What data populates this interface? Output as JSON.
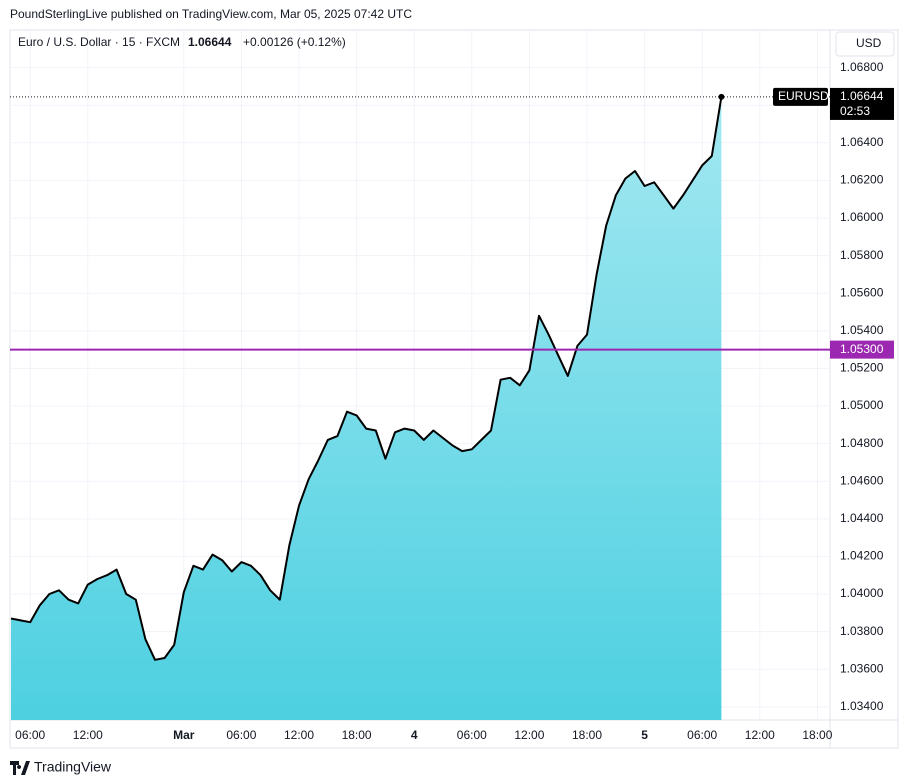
{
  "header": {
    "published": "PoundSterlingLive published on TradingView.com, Mar 05, 2025 07:42 UTC",
    "footer": "TradingView"
  },
  "chart_data": {
    "type": "area",
    "legend": {
      "instrument": "Euro / U.S. Dollar · 15 · FXCM",
      "last": "1.06644",
      "change": "+0.00126 (+0.12%)"
    },
    "currency": "USD",
    "badge": {
      "symbol": "EURUSD",
      "price": "1.06644",
      "countdown": "02:53"
    },
    "line_color": "#000000",
    "fill_top": "#a3e8f1",
    "fill_bottom": "#4dd0e1",
    "grid": true,
    "categories": [
      null,
      null,
      "06:00",
      null,
      null,
      null,
      null,
      null,
      "12:00",
      null,
      null,
      null,
      null,
      null,
      null,
      null,
      null,
      null,
      "Mar",
      null,
      null,
      null,
      null,
      null,
      "06:00",
      null,
      null,
      null,
      null,
      null,
      "12:00",
      null,
      null,
      null,
      null,
      null,
      "18:00",
      null,
      null,
      null,
      null,
      null,
      "4",
      null,
      null,
      null,
      null,
      null,
      "06:00",
      null,
      null,
      null,
      null,
      null,
      "12:00",
      null,
      null,
      null,
      null,
      null,
      "18:00",
      null,
      null,
      null,
      null,
      null,
      "5",
      null,
      null,
      null,
      null,
      null,
      "06:00",
      null,
      null,
      null,
      null,
      null,
      "12:00",
      null,
      null,
      null,
      null,
      null,
      "18:00",
      null
    ],
    "values": [
      1.0387,
      1.0386,
      1.0385,
      1.0394,
      1.04,
      1.0402,
      1.0397,
      1.0395,
      1.0405,
      1.0408,
      1.041,
      1.0413,
      1.04,
      1.0397,
      1.0376,
      1.0365,
      1.0366,
      1.0373,
      1.0401,
      1.0415,
      1.0413,
      1.0421,
      1.0418,
      1.0412,
      1.0417,
      1.0415,
      1.041,
      1.0402,
      1.0397,
      1.0426,
      1.0447,
      1.0461,
      1.0471,
      1.0482,
      1.0484,
      1.0497,
      1.0495,
      1.0488,
      1.0487,
      1.0472,
      1.0486,
      1.0488,
      1.0487,
      1.0482,
      1.0487,
      1.0483,
      1.0479,
      1.0476,
      1.0477,
      1.0482,
      1.0487,
      1.0514,
      1.0515,
      1.0511,
      1.0519,
      1.0548,
      1.0538,
      1.0527,
      1.0516,
      1.0532,
      1.0538,
      1.057,
      1.0596,
      1.0612,
      1.0621,
      1.0625,
      1.0617,
      1.0619,
      1.0612,
      1.0605,
      1.0612,
      1.062,
      1.0628,
      1.0633,
      1.06644,
      null,
      null,
      null,
      null,
      null,
      null,
      null,
      null,
      null,
      null,
      null
    ],
    "ylim": [
      1.0333,
      1.07
    ],
    "yticks": [
      {
        "value": 1.068,
        "label": "1.06800"
      },
      {
        "value": 1.066,
        "label": "1.06600"
      },
      {
        "value": 1.064,
        "label": "1.06400"
      },
      {
        "value": 1.062,
        "label": "1.06200"
      },
      {
        "value": 1.06,
        "label": "1.06000"
      },
      {
        "value": 1.058,
        "label": "1.05800"
      },
      {
        "value": 1.056,
        "label": "1.05600"
      },
      {
        "value": 1.054,
        "label": "1.05400"
      },
      {
        "value": 1.052,
        "label": "1.05200"
      },
      {
        "value": 1.05,
        "label": "1.05000"
      },
      {
        "value": 1.048,
        "label": "1.04800"
      },
      {
        "value": 1.046,
        "label": "1.04600"
      },
      {
        "value": 1.044,
        "label": "1.04400"
      },
      {
        "value": 1.042,
        "label": "1.04200"
      },
      {
        "value": 1.04,
        "label": "1.04000"
      },
      {
        "value": 1.038,
        "label": "1.03800"
      },
      {
        "value": 1.036,
        "label": "1.03600"
      },
      {
        "value": 1.034,
        "label": "1.03400"
      }
    ],
    "hline": {
      "value": 1.053,
      "label": "1.05300",
      "color": "#9c27b0"
    }
  }
}
